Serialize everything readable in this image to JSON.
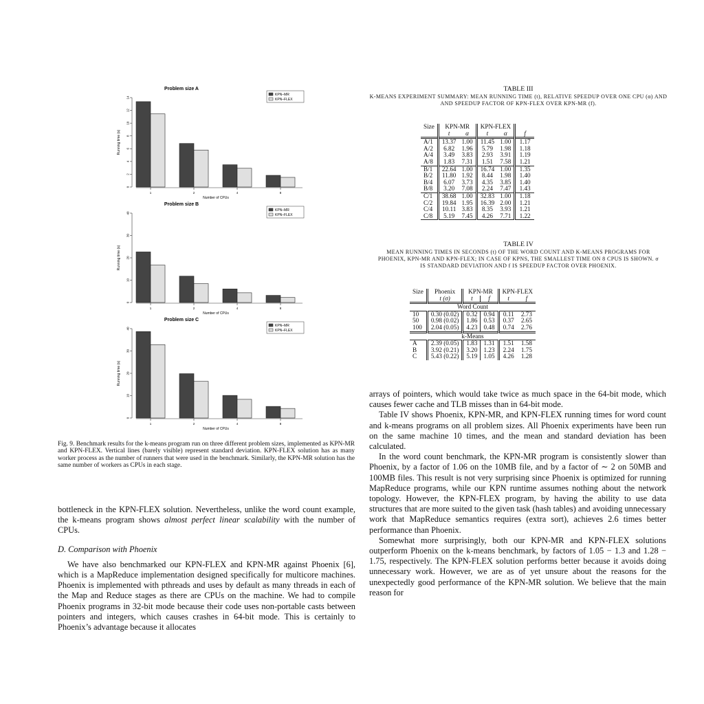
{
  "figure": {
    "legend": [
      "KPN–MR",
      "KPN–FLEX"
    ],
    "colors": {
      "mr": "#444444",
      "flex": "#e0e0e0"
    },
    "xlabel": "Number of CPUs",
    "ylabel": "Running time (s)",
    "caption": "Fig. 9.   Benchmark results for the k-means program run on three different problem sizes, implemented as KPN-MR and KPN-FLEX. Vertical lines (barely visible) represent standard deviation. KPN-FLEX solution has as many worker process as the number of runners that were used in the benchmark. Similarly, the KPN-MR solution has the same number of workers as CPUs in each stage."
  },
  "chart_data": [
    {
      "type": "bar",
      "title": "Problem size A",
      "categories": [
        "1",
        "2",
        "4",
        "8"
      ],
      "series": [
        {
          "name": "KPN–MR",
          "values": [
            13.37,
            6.82,
            3.49,
            1.83
          ]
        },
        {
          "name": "KPN–FLEX",
          "values": [
            11.45,
            5.79,
            2.93,
            1.51
          ]
        }
      ],
      "yticks": [
        "0",
        "2",
        "4",
        "6",
        "8",
        "10",
        "12",
        "14"
      ],
      "ylim": [
        0,
        14
      ],
      "xlabel": "Number of CPUs",
      "ylabel": "Running time (s)",
      "legend": "top-right"
    },
    {
      "type": "bar",
      "title": "Problem size B",
      "categories": [
        "1",
        "2",
        "4",
        "8"
      ],
      "series": [
        {
          "name": "KPN–MR",
          "values": [
            22.64,
            11.8,
            6.07,
            3.2
          ]
        },
        {
          "name": "KPN–FLEX",
          "values": [
            16.74,
            8.44,
            4.35,
            2.24
          ]
        }
      ],
      "yticks": [
        "0",
        "10",
        "20",
        "30",
        "40"
      ],
      "ylim": [
        0,
        40
      ],
      "xlabel": "Number of CPUs",
      "ylabel": "Running time (s)",
      "legend": "top-right"
    },
    {
      "type": "bar",
      "title": "Problem size C",
      "categories": [
        "1",
        "2",
        "4",
        "8"
      ],
      "series": [
        {
          "name": "KPN–MR",
          "values": [
            38.68,
            19.84,
            10.11,
            5.19
          ]
        },
        {
          "name": "KPN–FLEX",
          "values": [
            32.83,
            16.39,
            8.35,
            4.26
          ]
        }
      ],
      "yticks": [
        "0",
        "10",
        "20",
        "30",
        "40"
      ],
      "ylim": [
        0,
        40
      ],
      "xlabel": "Number of CPUs",
      "ylabel": "Running time (s)",
      "legend": "top-right"
    }
  ],
  "left_text": {
    "p1_a": "bottleneck in the KPN-FLEX solution. Nevertheless, unlike the word count example, the k-means program shows ",
    "p1_em": "almost perfect linear scalability",
    "p1_b": " with the number of CPUs.",
    "section": "D.  Comparison with Phoenix",
    "p2": "We have also benchmarked our KPN-FLEX and KPN-MR against Phoenix [6], which is a MapReduce implementation designed specifically for multicore machines. Phoenix is implemented with pthreads and uses by default as many threads in each of the Map and Reduce stages as there are CPUs on the machine. We had to compile Phoenix programs in 32-bit mode because their code uses non-portable casts between pointers and integers, which causes crashes in 64-bit mode. This is certainly to Phoenix’s advantage because it allocates"
  },
  "table3": {
    "title": "TABLE III",
    "caption": "K-MEANS EXPERIMENT SUMMARY: MEAN RUNNING TIME (t), RELATIVE SPEEDUP OVER ONE CPU (α) AND AND SPEEDUP FACTOR OF KPN-FLEX OVER KPN-MR (f).",
    "h_size": "Size",
    "h_mr": "KPN-MR",
    "h_flex": "KPN-FLEX",
    "h_t": "t",
    "h_alpha": "α",
    "h_f": "f",
    "groups": [
      [
        [
          "A/1",
          "13.37",
          "1.00",
          "11.45",
          "1.00",
          "1.17"
        ],
        [
          "A/2",
          "6.82",
          "1.96",
          "5.79",
          "1.98",
          "1.18"
        ],
        [
          "A/4",
          "3.49",
          "3.83",
          "2.93",
          "3.91",
          "1.19"
        ],
        [
          "A/8",
          "1.83",
          "7.31",
          "1.51",
          "7.58",
          "1.21"
        ]
      ],
      [
        [
          "B/1",
          "22.64",
          "1.00",
          "16.74",
          "1.00",
          "1.35"
        ],
        [
          "B/2",
          "11.80",
          "1.92",
          "8.44",
          "1.98",
          "1.40"
        ],
        [
          "B/4",
          "6.07",
          "3.73",
          "4.35",
          "3.85",
          "1.40"
        ],
        [
          "B/8",
          "3.20",
          "7.08",
          "2.24",
          "7.47",
          "1.43"
        ]
      ],
      [
        [
          "C/1",
          "38.68",
          "1.00",
          "32.83",
          "1.00",
          "1.18"
        ],
        [
          "C/2",
          "19.84",
          "1.95",
          "16.39",
          "2.00",
          "1.21"
        ],
        [
          "C/4",
          "10.11",
          "3.83",
          "8.35",
          "3.93",
          "1.21"
        ],
        [
          "C/8",
          "5.19",
          "7.45",
          "4.26",
          "7.71",
          "1.22"
        ]
      ]
    ]
  },
  "table4": {
    "title": "TABLE IV",
    "caption": "MEAN RUNNING TIMES IN SECONDS (t) OF THE WORD COUNT AND K-MEANS PROGRAMS FOR PHOENIX, KPN-MR AND KPN-FLEX; IN CASE OF KPNS, THE SMALLEST TIME ON 8 CPUS IS SHOWN. σ IS STANDARD DEVIATION AND f IS SPEEDUP FACTOR OVER PHOENIX.",
    "h_size": "Size",
    "h_phoenix": "Phoenix",
    "h_mr": "KPN-MR",
    "h_flex": "KPN-FLEX",
    "h_tsigma": "t (σ)",
    "h_t": "t",
    "h_f": "f",
    "wc_label": "Word Count",
    "wc_rows": [
      [
        "10",
        "0.30 (0.02)",
        "0.32",
        "0.94",
        "0.11",
        "2.73"
      ],
      [
        "50",
        "0.98 (0.02)",
        "1.86",
        "0.53",
        "0.37",
        "2.65"
      ],
      [
        "100",
        "2.04 (0.05)",
        "4.23",
        "0.48",
        "0.74",
        "2.76"
      ]
    ],
    "km_label": "k-Means",
    "km_rows": [
      [
        "A",
        "2.39 (0.05)",
        "1.83",
        "1.31",
        "1.51",
        "1.58"
      ],
      [
        "B",
        "3.92 (0.21)",
        "3.20",
        "1.23",
        "2.24",
        "1.75"
      ],
      [
        "C",
        "5.43 (0.22)",
        "5.19",
        "1.05",
        "4.26",
        "1.28"
      ]
    ]
  },
  "right_text": {
    "p1": "arrays of pointers, which would take twice as much space in the 64-bit mode, which causes fewer cache and TLB misses than in 64-bit mode.",
    "p2": "Table IV shows Phoenix, KPN-MR, and KPN-FLEX running times for word count and k-means programs on all problem sizes. All Phoenix experiments have been run on the same machine 10 times, and the mean and standard deviation has been calculated.",
    "p3": "In the word count benchmark, the KPN-MR program is consistently slower than Phoenix, by a factor of 1.06 on the 10MB file, and by a factor of ∼ 2 on 50MB and 100MB files. This result is not very surprising since Phoenix is optimized for running MapReduce programs, while our KPN runtime assumes nothing about the network topology. However, the KPN-FLEX program, by having the ability to use data structures that are more suited to the given task (hash tables) and avoiding unnecessary work that MapReduce semantics requires (extra sort), achieves 2.6 times better performance than Phoenix.",
    "p4": "Somewhat more surprisingly, both our KPN-MR and KPN-FLEX solutions outperform Phoenix on the k-means benchmark, by factors of 1.05 − 1.3 and 1.28 − 1.75, respectively. The KPN-FLEX solution performs better because it avoids doing unnecessary work. However, we are as of yet unsure about the reasons for the unexpectedly good performance of the KPN-MR solution. We believe that the main reason for"
  }
}
